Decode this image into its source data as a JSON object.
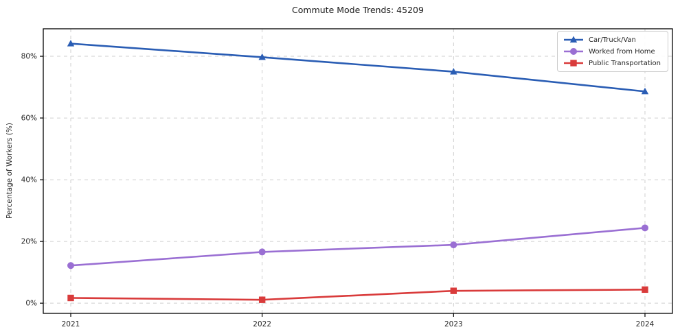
{
  "chart_data": {
    "type": "line",
    "title": "Commute Mode Trends: 45209",
    "xlabel": "",
    "ylabel": "Percentage of Workers (%)",
    "categories": [
      "2021",
      "2022",
      "2023",
      "2024"
    ],
    "series": [
      {
        "name": "Car/Truck/Van",
        "marker": "triangle",
        "color": "#2a5db4",
        "values": [
          84.1,
          79.7,
          75.0,
          68.6
        ]
      },
      {
        "name": "Worked from Home",
        "marker": "circle",
        "color": "#9a6fd3",
        "values": [
          12.2,
          16.6,
          18.9,
          24.4
        ]
      },
      {
        "name": "Public Transportation",
        "marker": "square",
        "color": "#d93b3b",
        "values": [
          1.7,
          1.1,
          4.0,
          4.4
        ]
      }
    ],
    "y_ticks": [
      0,
      20,
      40,
      60,
      80
    ],
    "y_tick_labels": [
      "0%",
      "20%",
      "40%",
      "60%",
      "80%"
    ],
    "ylim": [
      -3.3,
      88.9
    ],
    "grid": true,
    "grid_style": "dashed",
    "legend_position": "upper right",
    "colors": {
      "background": "#ffffff",
      "grid": "#cfcfcf",
      "axis": "#000000",
      "text": "#262626"
    }
  }
}
